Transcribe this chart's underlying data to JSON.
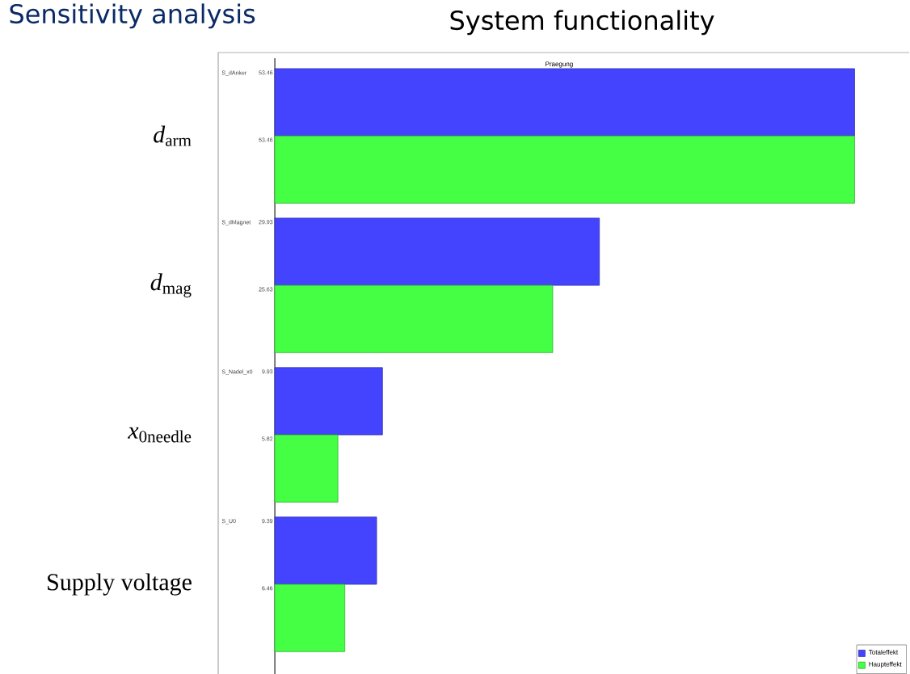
{
  "chart_data": {
    "type": "bar",
    "orientation": "horizontal",
    "title": "Sensitivity analysis",
    "subtitle": "System functionality",
    "categories": [
      "*d*$_{arm}$",
      "*d*$_{mag}$",
      "*x*$_{0needle}$",
      "Supply voltage"
    ],
    "series": [
      {
        "name": "Totaleffekt",
        "color": "#4444ff",
        "values": [
          53.46,
          29.93,
          9.93,
          9.39
        ]
      },
      {
        "name": "Haupteffekt",
        "color": "#44ff44",
        "values": [
          53.46,
          25.63,
          5.82,
          6.46
        ]
      }
    ],
    "annotations": [
      "Praegung",
      "S_dAnker",
      "S_dMagnet",
      "S_Nadel_x0",
      "S_U0"
    ],
    "data_labels": true,
    "legend": "bottom right"
  }
}
